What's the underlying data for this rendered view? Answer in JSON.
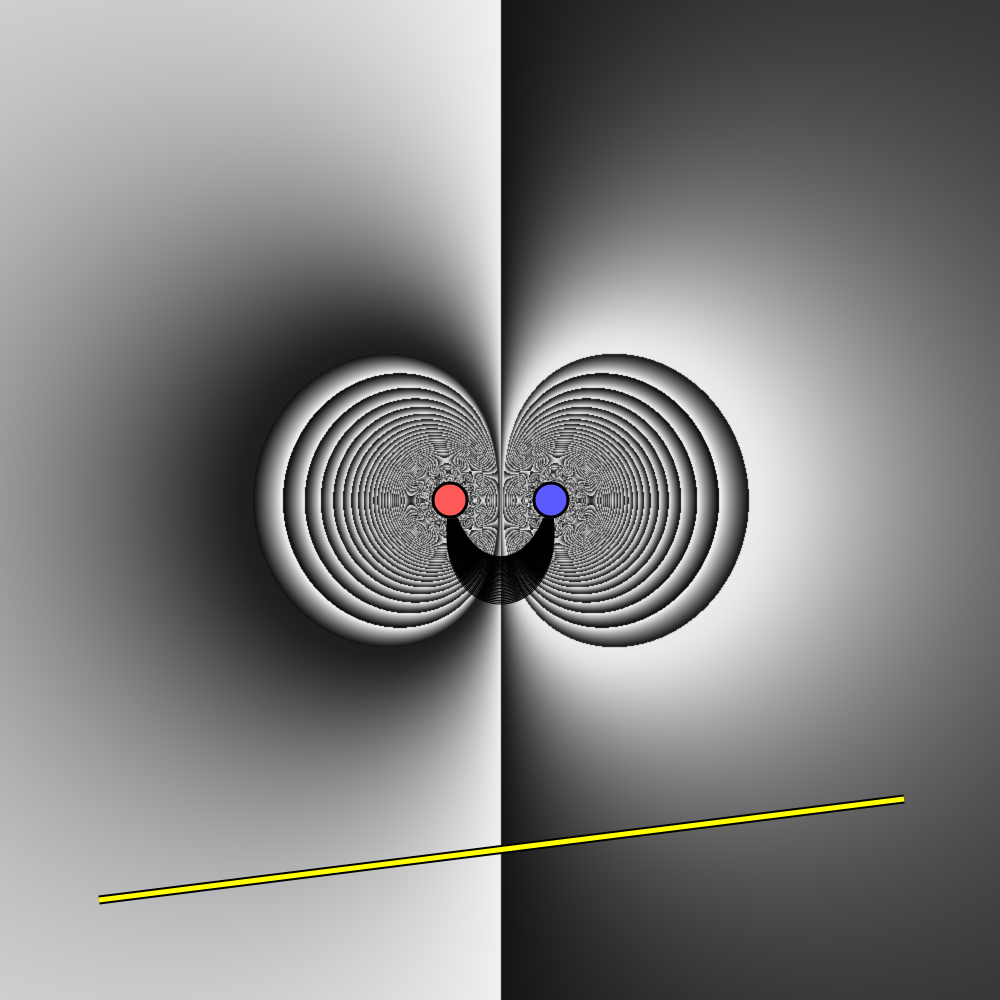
{
  "scene": {
    "colors": {
      "positive_charge": "#ff5a5a",
      "negative_charge": "#5a5aff",
      "charge_outline": "#000000",
      "conductor_bar": "#ffff00",
      "conductor_outline": "#000000",
      "field_line": "#000000"
    },
    "charges": [
      {
        "name": "positive-charge",
        "sign": "positive"
      },
      {
        "name": "negative-charge",
        "sign": "negative"
      }
    ]
  }
}
